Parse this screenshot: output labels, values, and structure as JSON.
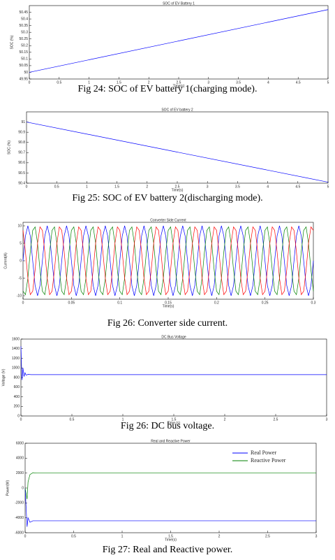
{
  "chart_data": [
    {
      "type": "line",
      "title": "SOC of EV Battery 1",
      "caption": "Fig 24: SOC of EV battery 1(charging mode).",
      "xlabel": "Time(s)",
      "ylabel": "SOC (%)",
      "xlim": [
        0,
        5
      ],
      "ylim": [
        49.95,
        50.5
      ],
      "xticks": [
        0,
        0.5,
        1,
        1.5,
        2,
        2.5,
        3,
        3.5,
        4,
        4.5,
        5
      ],
      "yticks": [
        49.95,
        50,
        50.05,
        50.1,
        50.15,
        50.2,
        50.25,
        50.3,
        50.35,
        50.4,
        50.45
      ],
      "series": [
        {
          "color": "#0000ff",
          "x": [
            0,
            5
          ],
          "values": [
            50,
            50.47
          ]
        }
      ]
    },
    {
      "type": "line",
      "title": "SOC of EV battery 2",
      "caption": "Fig 25: SOC of EV battery 2(discharging mode).",
      "xlabel": "Time(s)",
      "ylabel": "SOC (%)",
      "xlim": [
        0,
        5
      ],
      "ylim": [
        90.4,
        91.1
      ],
      "xticks": [
        0,
        0.5,
        1,
        1.5,
        2,
        2.5,
        3,
        3.5,
        4,
        4.5,
        5
      ],
      "yticks": [
        90.4,
        90.5,
        90.6,
        90.7,
        90.8,
        90.9,
        91
      ],
      "series": [
        {
          "color": "#0000ff",
          "x": [
            0,
            5
          ],
          "values": [
            91,
            90.41
          ]
        }
      ]
    },
    {
      "type": "line",
      "title": "Converter Side Current",
      "caption": "Fig 26: Converter side current.",
      "xlabel": "Time(s)",
      "ylabel": "Current(A)",
      "xlim": [
        0,
        0.3
      ],
      "ylim": [
        -11,
        11
      ],
      "xticks": [
        0,
        0.05,
        0.1,
        0.15,
        0.2,
        0.25,
        0.3
      ],
      "yticks": [
        -10,
        -5,
        0,
        5,
        10
      ],
      "x": [
        0,
        0.0025,
        0.005,
        0.0075,
        0.01,
        0.0125,
        0.015,
        0.0175,
        0.02,
        0.0225,
        0.025,
        0.0275,
        0.03,
        0.0325,
        0.035,
        0.0375,
        0.04,
        0.0425,
        0.045,
        0.0475,
        0.05,
        0.0525,
        0.055,
        0.0575,
        0.06,
        0.0625,
        0.065,
        0.0675,
        0.07,
        0.0725,
        0.075,
        0.0775,
        0.08,
        0.0825,
        0.085,
        0.0875,
        0.09,
        0.0925,
        0.095,
        0.0975,
        0.1,
        0.1025,
        0.105,
        0.1075,
        0.11,
        0.1125,
        0.115,
        0.1175,
        0.12,
        0.1225,
        0.125,
        0.1275,
        0.13,
        0.1325,
        0.135,
        0.1375,
        0.14,
        0.1425,
        0.145,
        0.1475,
        0.15,
        0.1525,
        0.155,
        0.1575,
        0.16,
        0.1625,
        0.165,
        0.1675,
        0.17,
        0.1725,
        0.175,
        0.1775,
        0.18,
        0.1825,
        0.185,
        0.1875,
        0.19,
        0.1925,
        0.195,
        0.1975,
        0.2,
        0.2025,
        0.205,
        0.2075,
        0.21,
        0.2125,
        0.215,
        0.2175,
        0.22,
        0.2225,
        0.225,
        0.2275,
        0.23,
        0.2325,
        0.235,
        0.2375,
        0.24,
        0.2425,
        0.245,
        0.2475,
        0.25,
        0.2525,
        0.255,
        0.2575,
        0.26,
        0.2625,
        0.265,
        0.2675,
        0.27,
        0.2725,
        0.275,
        0.2775,
        0.28,
        0.2825,
        0.285,
        0.2875,
        0.29,
        0.2925,
        0.295,
        0.2975,
        0.3
      ],
      "series": [
        {
          "color": "#0000ff",
          "values": [
            0,
            7.1,
            10,
            7.1,
            0,
            -7.1,
            -10,
            -7.1,
            0,
            7.1,
            10,
            7.1,
            0,
            -7.1,
            -10,
            -7.1,
            0,
            7.1,
            10,
            7.1,
            0,
            -7.1,
            -10,
            -7.1,
            0,
            7.1,
            10,
            7.1,
            0,
            -7.1,
            -10,
            -7.1,
            0,
            7.1,
            10,
            7.1,
            0,
            -7.1,
            -10,
            -7.1,
            0,
            7.1,
            10,
            7.1,
            0,
            -7.1,
            -10,
            -7.1,
            0,
            7.1,
            10,
            7.1,
            0,
            -7.1,
            -10,
            -7.1,
            0,
            7.1,
            10,
            7.1,
            0,
            -7.1,
            -10,
            -7.1,
            0,
            7.1,
            10,
            7.1,
            0,
            -7.1,
            -10,
            -7.1,
            0,
            7.1,
            10,
            7.1,
            0,
            -7.1,
            -10,
            -7.1,
            0,
            7.1,
            10,
            7.1,
            0,
            -7.1,
            -10,
            -7.1,
            0,
            7.1,
            10,
            7.1,
            0,
            -7.1,
            -10,
            -7.1,
            0,
            7.1,
            10,
            7.1,
            0,
            -7.1,
            -10,
            -7.1,
            0,
            7.1,
            10,
            7.1,
            0,
            -7.1,
            -10,
            -7.1,
            0,
            7.1,
            10,
            7.1,
            0,
            -7.1,
            -10,
            -7.1,
            0
          ]
        },
        {
          "color": "#008000",
          "values": [
            -8.7,
            -9.7,
            -5,
            2.6,
            8.7,
            9.7,
            5,
            -2.6,
            -8.7,
            -9.7,
            -5,
            2.6,
            8.7,
            9.7,
            5,
            -2.6,
            -8.7,
            -9.7,
            -5,
            2.6,
            8.7,
            9.7,
            5,
            -2.6,
            -8.7,
            -9.7,
            -5,
            2.6,
            8.7,
            9.7,
            5,
            -2.6,
            -8.7,
            -9.7,
            -5,
            2.6,
            8.7,
            9.7,
            5,
            -2.6,
            -8.7,
            -9.7,
            -5,
            2.6,
            8.7,
            9.7,
            5,
            -2.6,
            -8.7,
            -9.7,
            -5,
            2.6,
            8.7,
            9.7,
            5,
            -2.6,
            -8.7,
            -9.7,
            -5,
            2.6,
            8.7,
            9.7,
            5,
            -2.6,
            -8.7,
            -9.7,
            -5,
            2.6,
            8.7,
            9.7,
            5,
            -2.6,
            -8.7,
            -9.7,
            -5,
            2.6,
            8.7,
            9.7,
            5,
            -2.6,
            -8.7,
            -9.7,
            -5,
            2.6,
            8.7,
            9.7,
            5,
            -2.6,
            -8.7,
            -9.7,
            -5,
            2.6,
            8.7,
            9.7,
            5,
            -2.6,
            -8.7,
            -9.7,
            -5,
            2.6,
            8.7,
            9.7,
            5,
            -2.6,
            -8.7,
            -9.7,
            -5,
            2.6,
            8.7,
            9.7,
            5,
            -2.6,
            -8.7,
            -9.7,
            -5,
            2.6,
            8.7,
            9.7,
            5,
            -2.6,
            -8.7
          ]
        },
        {
          "color": "#ff0000",
          "values": [
            8.7,
            2.6,
            -5,
            -9.7,
            -8.7,
            -2.6,
            5,
            9.7,
            8.7,
            2.6,
            -5,
            -9.7,
            -8.7,
            -2.6,
            5,
            9.7,
            8.7,
            2.6,
            -5,
            -9.7,
            -8.7,
            -2.6,
            5,
            9.7,
            8.7,
            2.6,
            -5,
            -9.7,
            -8.7,
            -2.6,
            5,
            9.7,
            8.7,
            2.6,
            -5,
            -9.7,
            -8.7,
            -2.6,
            5,
            9.7,
            8.7,
            2.6,
            -5,
            -9.7,
            -8.7,
            -2.6,
            5,
            9.7,
            8.7,
            2.6,
            -5,
            -9.7,
            -8.7,
            -2.6,
            5,
            9.7,
            8.7,
            2.6,
            -5,
            -9.7,
            -8.7,
            -2.6,
            5,
            9.7,
            8.7,
            2.6,
            -5,
            -9.7,
            -8.7,
            -2.6,
            5,
            9.7,
            8.7,
            2.6,
            -5,
            -9.7,
            -8.7,
            -2.6,
            5,
            9.7,
            8.7,
            2.6,
            -5,
            -9.7,
            -8.7,
            -2.6,
            5,
            9.7,
            8.7,
            2.6,
            -5,
            -9.7,
            -8.7,
            -2.6,
            5,
            9.7,
            8.7,
            2.6,
            -5,
            -9.7,
            -8.7,
            -2.6,
            5,
            9.7,
            8.7,
            2.6,
            -5,
            -9.7,
            -8.7,
            -2.6,
            5,
            9.7,
            8.7,
            2.6,
            -5,
            -9.7,
            -8.7,
            -2.6,
            5,
            9.7,
            8.7
          ]
        }
      ]
    },
    {
      "type": "line",
      "title": "DC Bus Voltage",
      "caption": "Fig 26: DC bus voltage.",
      "xlabel": "Time (s)",
      "ylabel": "Voltage (V)",
      "xlim": [
        0,
        3
      ],
      "ylim": [
        0,
        1600
      ],
      "xticks": [
        0,
        0.5,
        1,
        1.5,
        2,
        2.5,
        3
      ],
      "yticks": [
        0,
        200,
        400,
        600,
        800,
        1000,
        1200,
        1400,
        1600
      ],
      "series": [
        {
          "color": "#0000ff",
          "x": [
            0,
            0.01,
            0.02,
            0.03,
            0.04,
            0.05,
            0.07,
            0.1,
            3
          ],
          "values": [
            1450,
            750,
            1000,
            820,
            900,
            850,
            865,
            860,
            860
          ]
        }
      ]
    },
    {
      "type": "line",
      "title": "Real and Reactive Power",
      "caption": "Fig 27: Real and Reactive power.",
      "xlabel": "Time(s)",
      "ylabel": "Power(W)",
      "xlim": [
        0,
        3
      ],
      "ylim": [
        -6000,
        6000
      ],
      "xticks": [
        0,
        0.5,
        1,
        1.5,
        2,
        2.5,
        3
      ],
      "yticks": [
        -6000,
        -4000,
        -2000,
        0,
        2000,
        4000,
        6000
      ],
      "legend": "upper right",
      "series": [
        {
          "name": "Real Power",
          "color": "#0000ff",
          "x": [
            0,
            0.02,
            0.03,
            0.05,
            0.08,
            0.12,
            3
          ],
          "values": [
            0,
            -5200,
            -4000,
            -4600,
            -4400,
            -4400,
            -4400
          ]
        },
        {
          "name": "Reactive Power",
          "color": "#008000",
          "x": [
            0,
            0.02,
            0.03,
            0.05,
            0.08,
            0.12,
            3
          ],
          "values": [
            0,
            -1500,
            800,
            1800,
            2050,
            2000,
            2000
          ]
        }
      ]
    }
  ]
}
